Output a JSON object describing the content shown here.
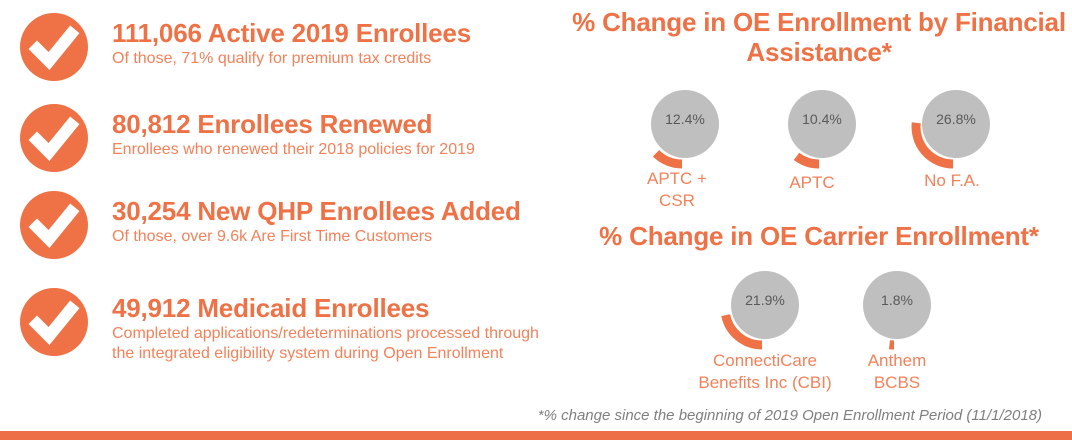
{
  "colors": {
    "accent": "#EE7246",
    "accent_soft": "#F2825A",
    "gauge_gray": "#BFBFBF",
    "pct_text": "#595959",
    "footnote_gray": "#7F7F7F",
    "bottom_bar": "#ED6F47"
  },
  "checklist": [
    {
      "icon": "checkmark-icon",
      "title": "111,066 Active 2019 Enrollees",
      "subtitle": "Of those, 71% qualify for premium tax credits"
    },
    {
      "icon": "checkmark-icon",
      "title": "80,812 Enrollees Renewed",
      "subtitle": "Enrollees who renewed their 2018 policies for 2019"
    },
    {
      "icon": "checkmark-icon",
      "title": "30,254 New QHP Enrollees Added",
      "subtitle": "Of those, over 9.6k Are First Time Customers"
    },
    {
      "icon": "checkmark-icon",
      "title": "49,912 Medicaid Enrollees",
      "subtitle": "Completed applications/redeterminations processed through the integrated eligibility system during Open Enrollment"
    }
  ],
  "charts": [
    {
      "title": "% Change in OE Enrollment by Financial Assistance*",
      "items": [
        {
          "pct": 12.4,
          "pct_label": "12.4%",
          "label": "APTC + CSR"
        },
        {
          "pct": 10.4,
          "pct_label": "10.4%",
          "label": "APTC"
        },
        {
          "pct": 26.8,
          "pct_label": "26.8%",
          "label": "No F.A."
        }
      ]
    },
    {
      "title": "% Change in OE Carrier Enrollment*",
      "items": [
        {
          "pct": 21.9,
          "pct_label": "21.9%",
          "label": "ConnectiCare Benefits Inc (CBI)"
        },
        {
          "pct": 1.8,
          "pct_label": "1.8%",
          "label": "Anthem BCBS"
        }
      ]
    }
  ],
  "chart_data": [
    {
      "type": "pie",
      "subtype": "gauge-arc",
      "title": "% Change in OE Enrollment by Financial Assistance*",
      "categories": [
        "APTC + CSR",
        "APTC",
        "No F.A."
      ],
      "values": [
        12.4,
        10.4,
        26.8
      ],
      "unit": "%",
      "legend": "none",
      "note": "orange arc length proportional to percent, drawn from bottom of gray circle sweeping toward left"
    },
    {
      "type": "pie",
      "subtype": "gauge-arc",
      "title": "% Change in OE Carrier Enrollment*",
      "categories": [
        "ConnectiCare Benefits Inc (CBI)",
        "Anthem BCBS"
      ],
      "values": [
        21.9,
        1.8
      ],
      "unit": "%",
      "legend": "none",
      "note": "orange arc length proportional to percent, drawn from bottom of gray circle sweeping toward left"
    }
  ],
  "footnote": "*% change since the beginning of 2019 Open Enrollment Period (11/1/2018)"
}
